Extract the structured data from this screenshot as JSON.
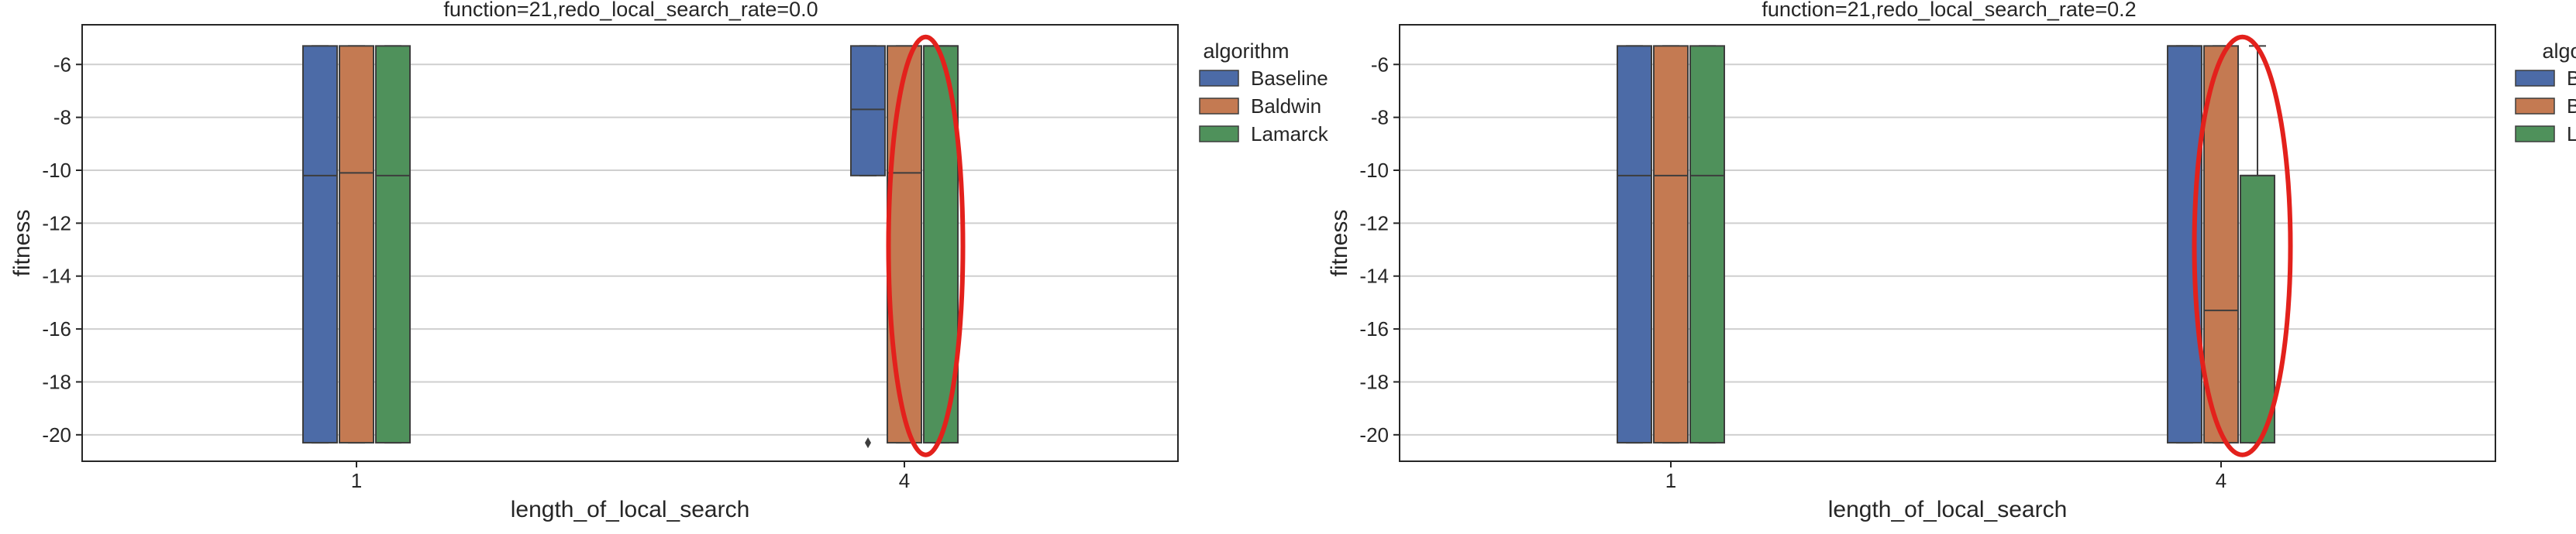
{
  "chart_data": [
    {
      "type": "box",
      "title": "function=21,redo_local_search_rate=0.0",
      "xlabel": "length_of_local_search",
      "ylabel": "fitness",
      "categories": [
        "1",
        "4"
      ],
      "ylim": [
        -21,
        -4.5
      ],
      "yticks": [
        -6,
        -8,
        -10,
        -12,
        -14,
        -16,
        -18,
        -20
      ],
      "grid": "horizontal",
      "legend": {
        "title": "algorithm",
        "placement": "right"
      },
      "series": [
        {
          "name": "Baseline",
          "color": "#4c6ba7",
          "boxes": [
            {
              "q1": -20.3,
              "median": -10.2,
              "q3": -5.3,
              "whisker_low": -20.3,
              "whisker_high": -5.3,
              "outliers": []
            },
            {
              "q1": -10.2,
              "median": -7.7,
              "q3": -5.3,
              "whisker_low": -10.2,
              "whisker_high": -5.3,
              "outliers": [
                -20.3
              ]
            }
          ]
        },
        {
          "name": "Baldwin",
          "color": "#c47a52",
          "boxes": [
            {
              "q1": -20.3,
              "median": -10.1,
              "q3": -5.3,
              "whisker_low": -20.3,
              "whisker_high": -5.3,
              "outliers": []
            },
            {
              "q1": -20.3,
              "median": -10.1,
              "q3": -5.3,
              "whisker_low": -20.3,
              "whisker_high": -5.3,
              "outliers": []
            }
          ]
        },
        {
          "name": "Lamarck",
          "color": "#4f915b",
          "boxes": [
            {
              "q1": -20.3,
              "median": -10.2,
              "q3": -5.3,
              "whisker_low": -20.3,
              "whisker_high": -5.3,
              "outliers": []
            },
            {
              "q1": -20.3,
              "median": -5.3,
              "q3": -5.3,
              "whisker_low": -20.3,
              "whisker_high": -5.3,
              "outliers": []
            }
          ]
        }
      ],
      "annotations": [
        {
          "type": "red-ellipse",
          "around": "Baldwin and Lamarck boxes at 4"
        }
      ]
    },
    {
      "type": "box",
      "title": "function=21,redo_local_search_rate=0.2",
      "xlabel": "length_of_local_search",
      "ylabel": "fitness",
      "categories": [
        "1",
        "4"
      ],
      "ylim": [
        -21,
        -4.5
      ],
      "yticks": [
        -6,
        -8,
        -10,
        -12,
        -14,
        -16,
        -18,
        -20
      ],
      "grid": "horizontal",
      "legend": {
        "title": "algo",
        "placement": "right",
        "entries": [
          "B",
          "B",
          "L"
        ]
      },
      "series": [
        {
          "name": "B",
          "color": "#4c6ba7",
          "boxes": [
            {
              "q1": -20.3,
              "median": -10.2,
              "q3": -5.3,
              "whisker_low": -20.3,
              "whisker_high": -5.3,
              "outliers": []
            },
            {
              "q1": -20.3,
              "median": -5.3,
              "q3": -5.3,
              "whisker_low": -20.3,
              "whisker_high": -5.3,
              "outliers": []
            }
          ]
        },
        {
          "name": "B",
          "color": "#c47a52",
          "boxes": [
            {
              "q1": -20.3,
              "median": -10.2,
              "q3": -5.3,
              "whisker_low": -20.3,
              "whisker_high": -5.3,
              "outliers": []
            },
            {
              "q1": -20.3,
              "median": -15.3,
              "q3": -5.3,
              "whisker_low": -20.3,
              "whisker_high": -5.3,
              "outliers": []
            }
          ]
        },
        {
          "name": "L",
          "color": "#4f915b",
          "boxes": [
            {
              "q1": -20.3,
              "median": -10.2,
              "q3": -5.3,
              "whisker_low": -20.3,
              "whisker_high": -5.3,
              "outliers": []
            },
            {
              "q1": -20.3,
              "median": -10.2,
              "q3": -10.2,
              "whisker_low": -20.3,
              "whisker_high": -5.3,
              "outliers": []
            }
          ]
        }
      ],
      "annotations": [
        {
          "type": "red-ellipse",
          "around": "Baldwin and Lamarck boxes at 4"
        }
      ]
    }
  ]
}
